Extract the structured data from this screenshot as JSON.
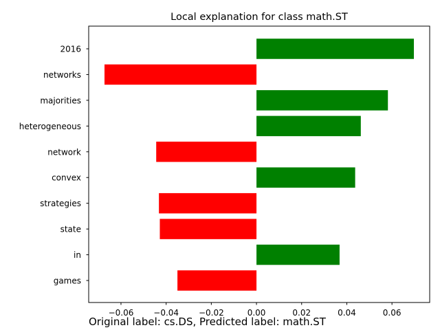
{
  "chart_data": {
    "type": "bar",
    "orientation": "horizontal",
    "title": "Local explanation for class math.ST",
    "xlabel": "",
    "ylabel": "",
    "categories": [
      "2016",
      "networks",
      "majorities",
      "heterogeneous",
      "network",
      "convex",
      "strategies",
      "state",
      "in",
      "games"
    ],
    "values": [
      0.0697,
      -0.0673,
      0.0582,
      0.0462,
      -0.0444,
      0.0437,
      -0.0432,
      -0.0428,
      0.0368,
      -0.035
    ],
    "bar_colors": [
      "#008000",
      "#ff0000",
      "#008000",
      "#008000",
      "#ff0000",
      "#008000",
      "#ff0000",
      "#ff0000",
      "#008000",
      "#ff0000"
    ],
    "xlim": [
      -0.0743,
      0.0767
    ],
    "xticks": [
      -0.06,
      -0.04,
      -0.02,
      0.0,
      0.02,
      0.04,
      0.06
    ],
    "xtick_labels": [
      "−0.06",
      "−0.04",
      "−0.02",
      "0.00",
      "0.02",
      "0.04",
      "0.06"
    ],
    "grid": false,
    "legend": "none"
  },
  "caption": "Original label: cs.DS, Predicted label: math.ST",
  "colors": {
    "positive": "#008000",
    "negative": "#ff0000"
  }
}
